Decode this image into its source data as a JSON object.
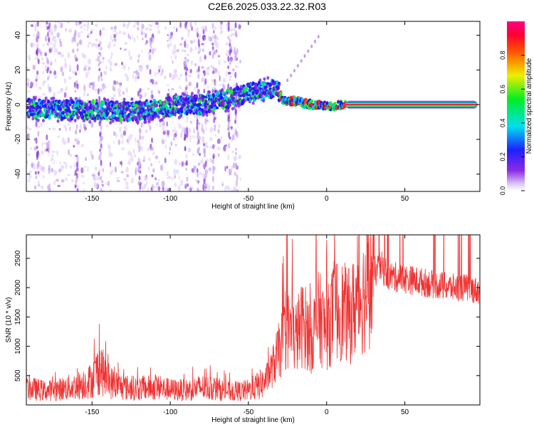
{
  "title": "C2E6.2025.033.22.32.R03",
  "chart_data": [
    {
      "type": "heatmap",
      "title": "C2E6.2025.033.22.32.R03",
      "xlabel": "Height of straight line (km)",
      "ylabel": "Frequency (Hz)",
      "xlim": [
        -192,
        98
      ],
      "ylim": [
        -50,
        48
      ],
      "xticks": [
        -150,
        -100,
        -50,
        0,
        50
      ],
      "yticks": [
        -40,
        -20,
        0,
        20,
        40
      ],
      "grid": false,
      "colorbar": {
        "label": "Normalized spectral amplitude",
        "range": [
          0,
          1
        ],
        "ticks": [
          0.0,
          0.2,
          0.4,
          0.6,
          0.8
        ],
        "colormap": "white-purple-blue-cyan-green-yellow-red-magenta"
      },
      "ridge": [
        {
          "x": -190,
          "y": -2
        },
        {
          "x": -170,
          "y": -3
        },
        {
          "x": -150,
          "y": -3
        },
        {
          "x": -130,
          "y": -4
        },
        {
          "x": -110,
          "y": -3
        },
        {
          "x": -100,
          "y": -1
        },
        {
          "x": -80,
          "y": 0
        },
        {
          "x": -70,
          "y": 2
        },
        {
          "x": -60,
          "y": 4
        },
        {
          "x": -50,
          "y": 7
        },
        {
          "x": -40,
          "y": 8
        },
        {
          "x": -32,
          "y": 10
        },
        {
          "x": -28,
          "y": 3
        },
        {
          "x": -20,
          "y": 2
        },
        {
          "x": -10,
          "y": 0
        },
        {
          "x": 0,
          "y": -1
        },
        {
          "x": 12,
          "y": 0
        },
        {
          "x": 50,
          "y": 0
        },
        {
          "x": 96,
          "y": 0
        }
      ]
    },
    {
      "type": "line",
      "xlabel": "Height of straight line (km)",
      "ylabel": "SNR (10 * v/v)",
      "xlim": [
        -192,
        98
      ],
      "ylim": [
        0,
        2900
      ],
      "xticks": [
        -150,
        -100,
        -50,
        0,
        50
      ],
      "yticks": [
        500,
        1000,
        1500,
        2000,
        2500
      ],
      "grid": false,
      "series": [
        {
          "color": "#ee3333",
          "x": [
            -190,
            -180,
            -170,
            -160,
            -150,
            -145,
            -140,
            -130,
            -120,
            -110,
            -100,
            -90,
            -80,
            -70,
            -60,
            -50,
            -40,
            -35,
            -30,
            -25,
            -20,
            -15,
            -10,
            -5,
            0,
            5,
            10,
            15,
            20,
            25,
            30,
            35,
            40,
            50,
            60,
            70,
            80,
            90,
            96
          ],
          "y": [
            280,
            240,
            270,
            320,
            420,
            650,
            400,
            300,
            280,
            300,
            260,
            250,
            300,
            270,
            220,
            250,
            380,
            620,
            950,
            1300,
            1150,
            1400,
            1150,
            1500,
            1250,
            1650,
            1600,
            1500,
            1800,
            1900,
            2250,
            2350,
            2200,
            2150,
            2100,
            2050,
            2000,
            2000,
            1950
          ]
        }
      ]
    }
  ]
}
